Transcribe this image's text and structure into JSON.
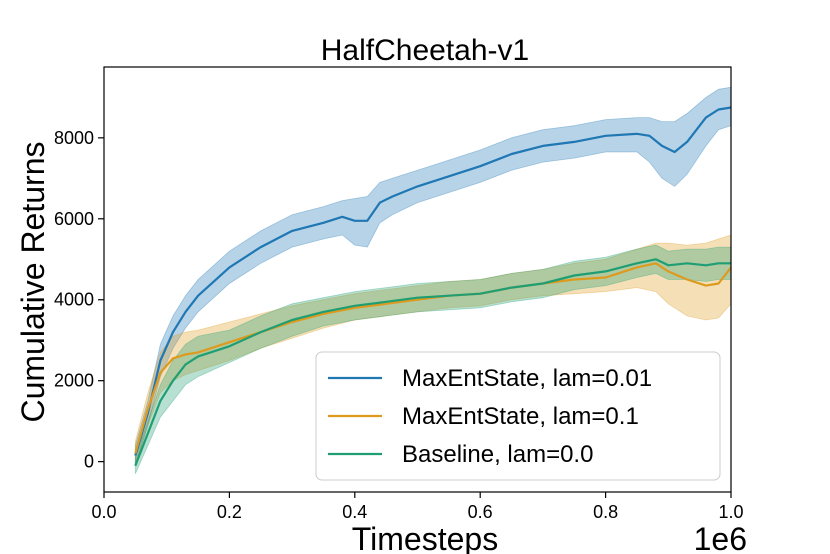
{
  "chart_data": {
    "type": "line",
    "title": "HalfCheetah-v1",
    "xlabel": "Timesteps",
    "ylabel": "Cumulative Returns",
    "x_offset_text": "1e6",
    "xlim": [
      0.0,
      1.0
    ],
    "ylim": [
      -750,
      9750
    ],
    "xticks": [
      0.0,
      0.2,
      0.4,
      0.6,
      0.8,
      1.0
    ],
    "xtick_labels": [
      "0.0",
      "0.2",
      "0.4",
      "0.6",
      "0.8",
      "1.0"
    ],
    "yticks": [
      0,
      2000,
      4000,
      6000,
      8000
    ],
    "ytick_labels": [
      "0",
      "2000",
      "4000",
      "6000",
      "8000"
    ],
    "grid": false,
    "legend_position": "lower-right",
    "series": [
      {
        "name": "MaxEntState, lam=0.01",
        "color": "#1f77b4",
        "x": [
          0.05,
          0.07,
          0.09,
          0.11,
          0.13,
          0.15,
          0.2,
          0.25,
          0.3,
          0.35,
          0.38,
          0.4,
          0.42,
          0.44,
          0.46,
          0.5,
          0.55,
          0.6,
          0.65,
          0.7,
          0.75,
          0.8,
          0.85,
          0.87,
          0.89,
          0.91,
          0.93,
          0.96,
          0.98,
          1.0
        ],
        "values": [
          150,
          1200,
          2500,
          3200,
          3700,
          4100,
          4800,
          5300,
          5700,
          5900,
          6050,
          5950,
          5950,
          6400,
          6550,
          6800,
          7050,
          7300,
          7600,
          7800,
          7900,
          8050,
          8100,
          8050,
          7800,
          7650,
          7900,
          8500,
          8700,
          8750
        ],
        "lower": [
          -100,
          900,
          2100,
          2800,
          3300,
          3700,
          4400,
          4900,
          5300,
          5500,
          5600,
          5350,
          5300,
          5900,
          6100,
          6400,
          6650,
          6900,
          7200,
          7400,
          7500,
          7650,
          7650,
          7400,
          7000,
          6800,
          7100,
          7800,
          8200,
          8300
        ],
        "upper": [
          400,
          1500,
          2900,
          3600,
          4100,
          4500,
          5200,
          5700,
          6100,
          6300,
          6450,
          6500,
          6550,
          6900,
          7000,
          7200,
          7450,
          7700,
          8000,
          8200,
          8300,
          8450,
          8500,
          8500,
          8400,
          8400,
          8600,
          9000,
          9200,
          9250
        ]
      },
      {
        "name": "MaxEntState, lam=0.1",
        "color": "#dd9a1e",
        "x": [
          0.05,
          0.07,
          0.09,
          0.11,
          0.13,
          0.15,
          0.2,
          0.25,
          0.3,
          0.35,
          0.4,
          0.45,
          0.5,
          0.55,
          0.6,
          0.65,
          0.7,
          0.75,
          0.8,
          0.85,
          0.88,
          0.9,
          0.93,
          0.96,
          0.98,
          1.0
        ],
        "values": [
          200,
          1300,
          2200,
          2550,
          2650,
          2700,
          2950,
          3200,
          3450,
          3650,
          3800,
          3900,
          4000,
          4100,
          4150,
          4300,
          4400,
          4500,
          4550,
          4800,
          4900,
          4700,
          4500,
          4350,
          4400,
          4800
        ],
        "lower": [
          -100,
          900,
          1700,
          2000,
          2150,
          2250,
          2500,
          2800,
          3050,
          3300,
          3500,
          3600,
          3700,
          3800,
          3850,
          4000,
          4100,
          4150,
          4200,
          4300,
          4200,
          3900,
          3600,
          3500,
          3550,
          3900
        ],
        "upper": [
          500,
          1700,
          2700,
          3100,
          3200,
          3250,
          3450,
          3650,
          3850,
          4000,
          4150,
          4250,
          4350,
          4450,
          4500,
          4650,
          4750,
          4900,
          5000,
          5250,
          5400,
          5400,
          5350,
          5400,
          5500,
          5600
        ]
      },
      {
        "name": "Baseline, lam=0.0",
        "color": "#1f9e73",
        "x": [
          0.05,
          0.07,
          0.09,
          0.11,
          0.13,
          0.15,
          0.2,
          0.25,
          0.3,
          0.35,
          0.4,
          0.45,
          0.5,
          0.55,
          0.6,
          0.65,
          0.7,
          0.75,
          0.8,
          0.85,
          0.88,
          0.9,
          0.93,
          0.96,
          0.98,
          1.0
        ],
        "values": [
          -100,
          700,
          1500,
          2000,
          2400,
          2600,
          2850,
          3200,
          3500,
          3700,
          3850,
          3950,
          4050,
          4100,
          4150,
          4300,
          4400,
          4600,
          4700,
          4900,
          5000,
          4850,
          4900,
          4850,
          4900,
          4900
        ],
        "lower": [
          -300,
          400,
          1100,
          1500,
          1900,
          2100,
          2450,
          2800,
          3100,
          3350,
          3500,
          3600,
          3700,
          3750,
          3800,
          3950,
          4050,
          4250,
          4350,
          4550,
          4650,
          4500,
          4500,
          4450,
          4500,
          4500
        ],
        "upper": [
          100,
          1000,
          1900,
          2500,
          2900,
          3100,
          3250,
          3600,
          3900,
          4050,
          4200,
          4300,
          4400,
          4450,
          4500,
          4650,
          4750,
          4950,
          5050,
          5250,
          5350,
          5200,
          5250,
          5250,
          5300,
          5300
        ]
      }
    ]
  }
}
